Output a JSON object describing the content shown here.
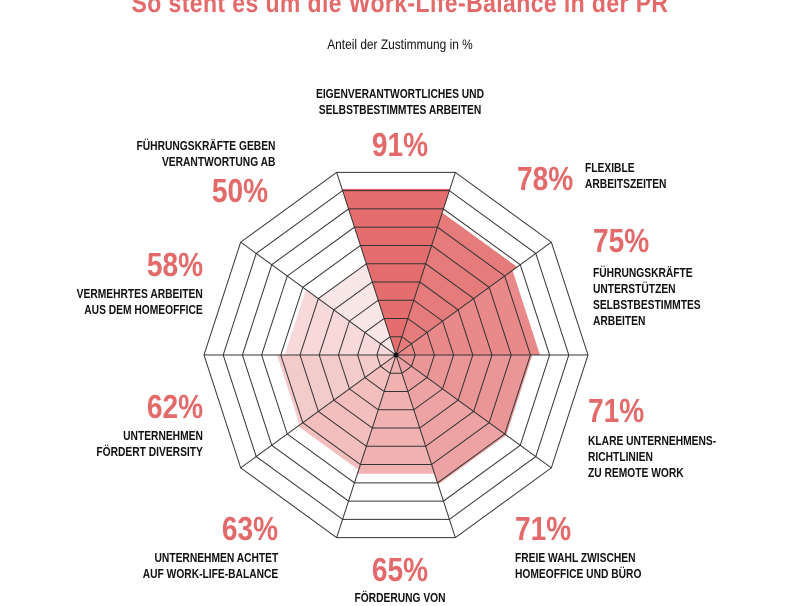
{
  "chart_data": {
    "type": "radar-sector",
    "title": "So steht es um die Work-Life-Balance in der PR",
    "subtitle": "Anteil der Zustimmung in %",
    "range": [
      0,
      100
    ],
    "rings": 10,
    "grid": true,
    "categories": [
      "EIGENVERANTWORTLICHES UND\nSELBSTBESTIMMTES ARBEITEN",
      "FLEXIBLE\nARBEITSZEITEN",
      "FÜHRUNGSKRÄFTE\nUNTERSTÜTZEN\nSELBSTBESTIMMTES\nARBEITEN",
      "KLARE UNTERNEHMENS-\nRICHTLINIEN\nZU REMOTE WORK",
      "FREIE WAHL ZWISCHEN\nHOMEOFFICE UND BÜRO",
      "FÖRDERUNG VON",
      "UNTERNEHMEN ACHTET\nAUF WORK-LIFE-BALANCE",
      "UNTERNEHMEN\nFÖRDERT DIVERSITY",
      "VERMEHRTES ARBEITEN\nAUS DEM HOMEOFFICE",
      "FÜHRUNGSKRÄFTE GEBEN\nVERANTWORTUNG AB"
    ],
    "values": [
      91,
      78,
      75,
      71,
      71,
      65,
      63,
      62,
      58,
      50
    ],
    "value_labels": [
      "91%",
      "78%",
      "75%",
      "71%",
      "71%",
      "65%",
      "63%",
      "62%",
      "58%",
      "50%"
    ],
    "colors": {
      "accent": "#e36a6a",
      "darkest": "#e46e6e",
      "lightest": "#f9e6e6",
      "grid": "#333333"
    }
  }
}
